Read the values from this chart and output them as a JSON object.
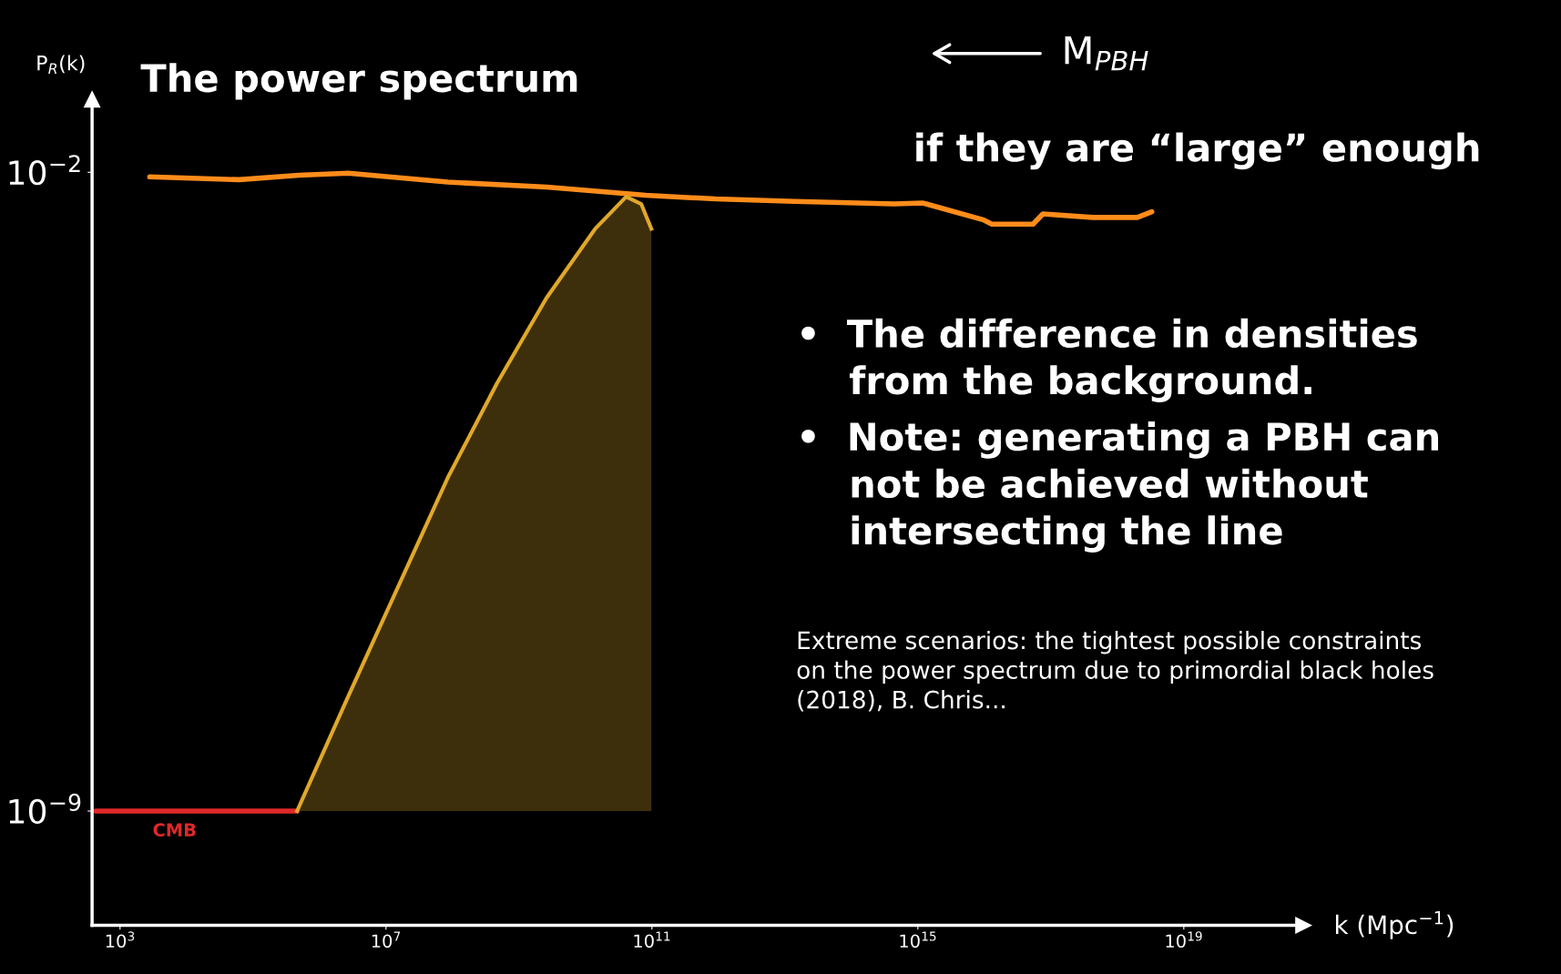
{
  "chart_data": {
    "type": "line",
    "title": "The power spectrum",
    "ylabel": "P$_{R}$(k)",
    "xlabel": "k (Mpc$^{−1}$)",
    "log": "xy",
    "grid": false,
    "legend": false,
    "xlim": [
      380,
      6.3e+20
    ],
    "ylim": [
      5.6e-11,
      0.063
    ],
    "xticks": [
      {
        "value": 1000,
        "label": "10$^{3}$"
      },
      {
        "value": 10000000.0,
        "label": "10$^{7}$"
      },
      {
        "value": 100000000000.0,
        "label": "10$^{11}$"
      },
      {
        "value": 1000000000000000.0,
        "label": "10$^{15}$"
      },
      {
        "value": 1e+19,
        "label": "10$^{19}$"
      }
    ],
    "yticks": [
      {
        "value": 1e-09,
        "label": "10$^{−9}$"
      },
      {
        "value": 0.01,
        "label": "10$^{−2}$"
      }
    ],
    "series": [
      {
        "color": "#ff8c1a",
        "x": [
          2800,
          62000,
          490000,
          2700000,
          85000000,
          2600000000,
          81000000000,
          910000000000,
          14000000000000.0,
          440000000000000.0,
          1200000000000000.0,
          9800000000000000.0,
          1.3e+16,
          5.4e+16,
          7.6e+16,
          4.3e+17,
          2e+18,
          3.3e+18
        ],
        "values": [
          0.0089,
          0.0083,
          0.0093,
          0.0098,
          0.0078,
          0.0069,
          0.0056,
          0.0051,
          0.0048,
          0.0045,
          0.0046,
          0.003,
          0.0027,
          0.0027,
          0.0035,
          0.0032,
          0.0032,
          0.0037
        ]
      },
      {
        "name": "CMB",
        "color": "#e02828",
        "x": [
          430,
          460000
        ],
        "values": [
          1e-09,
          1e-09
        ]
      },
      {
        "type": "area",
        "color": "#e0a82a",
        "x": [
          460000,
          2700000,
          15000000,
          85000000,
          470000000,
          2600000000,
          14000000000,
          41000000000,
          69000000000,
          98000000000
        ],
        "values": [
          1e-09,
          1.8e-08,
          2.8e-07,
          4.5e-06,
          4.9e-05,
          0.00042,
          0.0024,
          0.0054,
          0.0045,
          0.0024
        ]
      }
    ],
    "annotations": [
      "M$_{PBH}$",
      "if they are “large” enough",
      "•  The difference in densities\n    from the background.",
      "•  Note: generating a PBH can\n    not be achieved without\n    intersecting the line",
      "Extreme scenarios: the tightest possible constraints\non the power spectrum due to primordial black holes\n(2018), B. Chris..."
    ]
  }
}
